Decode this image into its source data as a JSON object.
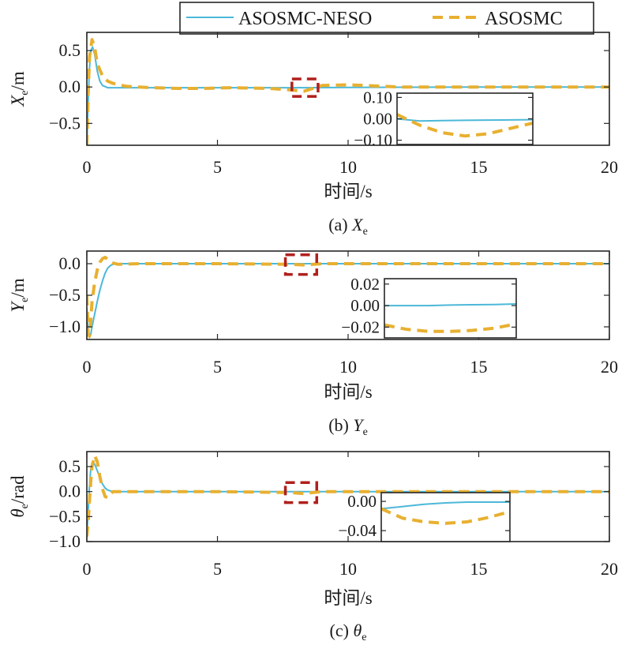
{
  "legend": {
    "entries": [
      {
        "name": "ASOSMC-NESO",
        "color": "#4cb8d8",
        "style": "solid"
      },
      {
        "name": "ASOSMC",
        "color": "#e8b030",
        "style": "dashed"
      }
    ]
  },
  "chart_data": [
    {
      "type": "line",
      "caption": "(a) X",
      "caption_sub": "e",
      "xlabel": "时间/s",
      "ylabel": "X",
      "ylabel_sub": "e",
      "ylabel_unit": "/m",
      "xlim": [
        0,
        20
      ],
      "ylim": [
        -0.8,
        0.75
      ],
      "xticks": [
        0,
        5,
        10,
        15,
        20
      ],
      "xtick_labels": [
        "0",
        "5",
        "10",
        "15",
        "20"
      ],
      "yticks": [
        0.5,
        0.0,
        -0.5
      ],
      "ytick_labels": [
        "0.5",
        "0.0",
        "−0.5"
      ],
      "grid": false,
      "series": [
        {
          "name": "ASOSMC-NESO",
          "color": "#4cb8d8",
          "dash": false,
          "x": [
            0,
            0.05,
            0.1,
            0.15,
            0.22,
            0.3,
            0.4,
            0.5,
            0.6,
            0.8,
            1.0,
            1.5,
            2,
            3,
            5,
            8,
            10,
            15,
            20
          ],
          "y": [
            -0.8,
            -0.2,
            0.25,
            0.5,
            0.55,
            0.45,
            0.22,
            0.08,
            0.02,
            -0.01,
            -0.01,
            -0.01,
            -0.01,
            -0.01,
            -0.01,
            -0.01,
            -0.005,
            0,
            0
          ]
        },
        {
          "name": "ASOSMC",
          "color": "#e8b030",
          "dash": true,
          "x": [
            0,
            0.05,
            0.1,
            0.2,
            0.3,
            0.4,
            0.6,
            0.8,
            1.0,
            1.5,
            2.5,
            3.5,
            4.5,
            5.5,
            7,
            7.8,
            8.3,
            9,
            10,
            12,
            20
          ],
          "y": [
            -0.8,
            -0.1,
            0.4,
            0.65,
            0.55,
            0.32,
            0.15,
            0.08,
            0.05,
            0.01,
            -0.01,
            -0.02,
            -0.02,
            -0.01,
            -0.02,
            -0.04,
            -0.06,
            0.02,
            0.03,
            0.0,
            0.0
          ]
        }
      ],
      "annotation_box": {
        "x": [
          7.85,
          8.85
        ],
        "y": [
          -0.13,
          0.11
        ]
      },
      "inset": {
        "xlim": [
          7.8,
          9.0
        ],
        "ylim": [
          -0.12,
          0.12
        ],
        "yticks": [
          0.1,
          0.0,
          -0.1
        ],
        "ytick_labels": [
          "0.10",
          "0.00",
          "−0.10"
        ],
        "series": [
          {
            "name": "ASOSMC-NESO",
            "x": [
              7.8,
              8.0,
              8.2,
              8.4,
              8.6,
              8.8,
              9.0
            ],
            "y": [
              0.0,
              -0.01,
              -0.008,
              -0.007,
              -0.006,
              -0.005,
              -0.004
            ]
          },
          {
            "name": "ASOSMC",
            "x": [
              7.8,
              8.0,
              8.2,
              8.4,
              8.6,
              8.8,
              9.0
            ],
            "y": [
              0.02,
              -0.03,
              -0.065,
              -0.08,
              -0.07,
              -0.045,
              -0.02
            ]
          }
        ]
      }
    },
    {
      "type": "line",
      "caption": "(b) Y",
      "caption_sub": "e",
      "xlabel": "时间/s",
      "ylabel": "Y",
      "ylabel_sub": "e",
      "ylabel_unit": "/m",
      "xlim": [
        0,
        20
      ],
      "ylim": [
        -1.2,
        0.2
      ],
      "xticks": [
        0,
        5,
        10,
        15,
        20
      ],
      "xtick_labels": [
        "0",
        "5",
        "10",
        "15",
        "20"
      ],
      "yticks": [
        0.0,
        -0.5,
        -1.0
      ],
      "ytick_labels": [
        "0.0",
        "−0.5",
        "−1.0"
      ],
      "grid": false,
      "series": [
        {
          "name": "ASOSMC-NESO",
          "color": "#4cb8d8",
          "dash": false,
          "x": [
            0,
            0.05,
            0.1,
            0.15,
            0.2,
            0.3,
            0.4,
            0.5,
            0.6,
            0.7,
            0.8,
            0.9,
            1.0,
            1.2,
            2,
            5,
            10,
            20
          ],
          "y": [
            -0.7,
            -1.1,
            -1.17,
            -1.12,
            -1.0,
            -0.8,
            -0.6,
            -0.42,
            -0.27,
            -0.15,
            -0.07,
            -0.03,
            -0.01,
            0.0,
            0.0,
            0.0,
            0.0,
            0.0
          ]
        },
        {
          "name": "ASOSMC",
          "color": "#e8b030",
          "dash": true,
          "x": [
            0,
            0.05,
            0.1,
            0.15,
            0.2,
            0.3,
            0.4,
            0.5,
            0.6,
            0.7,
            0.8,
            0.9,
            1.0,
            1.2,
            2,
            5,
            7.8,
            8.3,
            9,
            10,
            20
          ],
          "y": [
            -0.5,
            -1.1,
            -1.15,
            -0.9,
            -0.6,
            -0.3,
            -0.1,
            0.02,
            0.08,
            0.1,
            0.07,
            0.03,
            0.01,
            -0.01,
            0.0,
            0.0,
            -0.01,
            -0.02,
            0.0,
            0.0,
            0.0
          ]
        }
      ],
      "annotation_box": {
        "x": [
          7.6,
          8.8
        ],
        "y": [
          -0.17,
          0.14
        ]
      },
      "inset": {
        "xlim": [
          7.6,
          8.8
        ],
        "ylim": [
          -0.03,
          0.025
        ],
        "yticks": [
          0.02,
          0.0,
          -0.02
        ],
        "ytick_labels": [
          "0.02",
          "0.00",
          "−0.02"
        ],
        "series": [
          {
            "name": "ASOSMC-NESO",
            "x": [
              7.6,
              7.8,
              8.0,
              8.2,
              8.4,
              8.6,
              8.8
            ],
            "y": [
              0.0,
              0.0,
              0.0,
              0.0005,
              0.0008,
              0.001,
              0.0015
            ]
          },
          {
            "name": "ASOSMC",
            "x": [
              7.6,
              7.8,
              8.0,
              8.2,
              8.4,
              8.6,
              8.8
            ],
            "y": [
              -0.018,
              -0.022,
              -0.024,
              -0.024,
              -0.023,
              -0.021,
              -0.017
            ]
          }
        ]
      }
    },
    {
      "type": "line",
      "caption": "(c) θ",
      "caption_sub": "e",
      "xlabel": "时间/s",
      "ylabel": "θ",
      "ylabel_sub": "e",
      "ylabel_unit": "/rad",
      "xlim": [
        0,
        20
      ],
      "ylim": [
        -1.0,
        0.8
      ],
      "xticks": [
        0,
        5,
        10,
        15,
        20
      ],
      "xtick_labels": [
        "0",
        "5",
        "10",
        "15",
        "20"
      ],
      "yticks": [
        0.5,
        0.0,
        -0.5,
        -1.0
      ],
      "ytick_labels": [
        "0.5",
        "0.0",
        "−0.5",
        "−1.0"
      ],
      "grid": false,
      "series": [
        {
          "name": "ASOSMC-NESO",
          "color": "#4cb8d8",
          "dash": false,
          "x": [
            0,
            0.05,
            0.1,
            0.15,
            0.2,
            0.3,
            0.4,
            0.5,
            0.6,
            0.7,
            0.8,
            1.0,
            1.2,
            2,
            5,
            10,
            20
          ],
          "y": [
            -0.9,
            -0.4,
            0.1,
            0.45,
            0.58,
            0.55,
            0.42,
            0.28,
            0.15,
            0.07,
            0.03,
            0.0,
            0.0,
            0.0,
            0.0,
            0.0,
            0.0
          ]
        },
        {
          "name": "ASOSMC",
          "color": "#e8b030",
          "dash": true,
          "x": [
            0,
            0.05,
            0.1,
            0.15,
            0.2,
            0.3,
            0.4,
            0.5,
            0.6,
            0.7,
            0.8,
            0.9,
            1.0,
            1.2,
            2,
            5,
            7.8,
            8.3,
            9,
            10,
            20
          ],
          "y": [
            -0.9,
            -0.6,
            -0.2,
            0.2,
            0.5,
            0.72,
            0.6,
            0.3,
            0.05,
            -0.1,
            -0.12,
            -0.05,
            0.0,
            0.0,
            0.0,
            0.0,
            -0.02,
            -0.04,
            0.0,
            0.0,
            0.0
          ]
        }
      ],
      "annotation_box": {
        "x": [
          7.6,
          8.8
        ],
        "y": [
          -0.22,
          0.18
        ]
      },
      "inset": {
        "xlim": [
          7.6,
          8.8
        ],
        "ylim": [
          -0.055,
          0.012
        ],
        "yticks": [
          0.0,
          -0.04
        ],
        "ytick_labels": [
          "0.00",
          "−0.04"
        ],
        "series": [
          {
            "name": "ASOSMC-NESO",
            "x": [
              7.6,
              7.8,
              8.0,
              8.2,
              8.4,
              8.6,
              8.8
            ],
            "y": [
              -0.01,
              -0.007,
              -0.004,
              -0.002,
              -0.001,
              -0.001,
              -0.001
            ]
          },
          {
            "name": "ASOSMC",
            "x": [
              7.6,
              7.8,
              8.0,
              8.2,
              8.4,
              8.6,
              8.8
            ],
            "y": [
              -0.01,
              -0.023,
              -0.028,
              -0.03,
              -0.028,
              -0.022,
              -0.014
            ]
          }
        ]
      }
    }
  ]
}
